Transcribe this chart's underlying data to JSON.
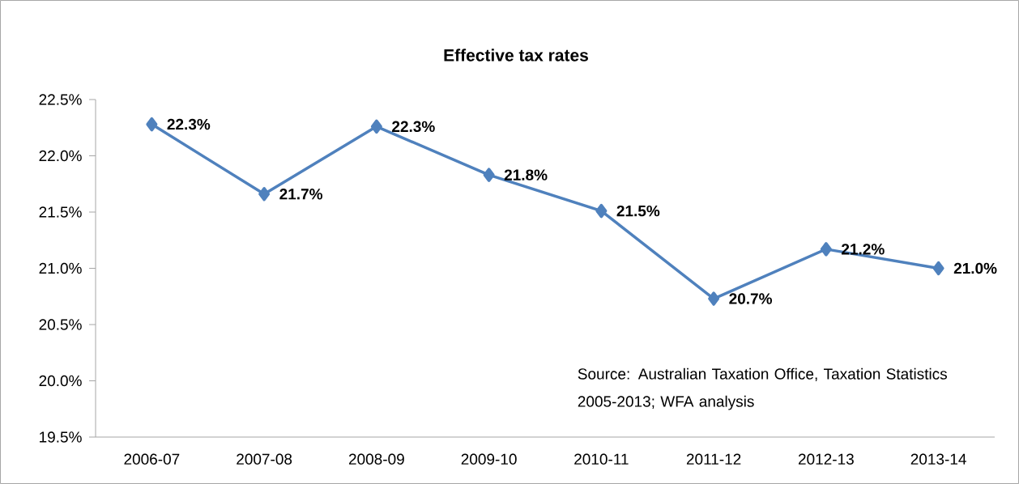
{
  "chart_data": {
    "type": "line",
    "title": "Effective tax rates",
    "categories": [
      "2006-07",
      "2007-08",
      "2008-09",
      "2009-10",
      "2010-11",
      "2011-12",
      "2012-13",
      "2013-14"
    ],
    "values": [
      22.28,
      21.66,
      22.26,
      21.83,
      21.51,
      20.73,
      21.17,
      21.0
    ],
    "value_labels": [
      "22.3%",
      "21.7%",
      "22.3%",
      "21.8%",
      "21.5%",
      "20.7%",
      "21.2%",
      "21.0%"
    ],
    "color": "#4f81bd",
    "marker": "diamond",
    "line_style": "solid",
    "ylim": [
      19.5,
      22.5
    ],
    "yticks": [
      {
        "value": 19.5,
        "label": "19.5%"
      },
      {
        "value": 20.0,
        "label": "20.0%"
      },
      {
        "value": 20.5,
        "label": "20.5%"
      },
      {
        "value": 21.0,
        "label": "21.0%"
      },
      {
        "value": 21.5,
        "label": "21.5%"
      },
      {
        "value": 22.0,
        "label": "22.0%"
      },
      {
        "value": 22.5,
        "label": "22.5%"
      }
    ],
    "annotations": [
      "Source: Australian Taxation Office, Taxation Statistics 2005-2013; WFA analysis"
    ]
  }
}
